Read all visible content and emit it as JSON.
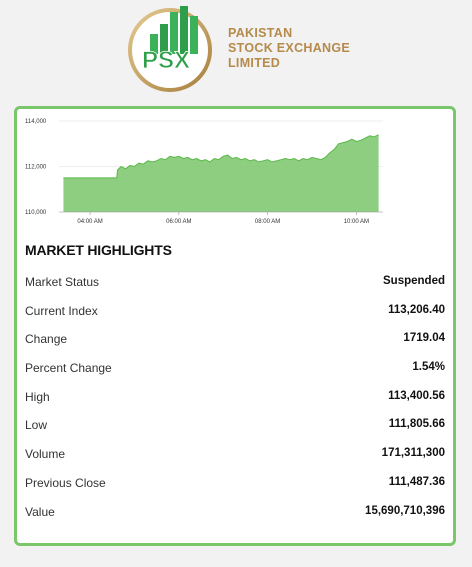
{
  "logo": {
    "mark_text": "PSX",
    "name_lines": [
      "PAKISTAN",
      "STOCK EXCHANGE",
      "LIMITED"
    ]
  },
  "colors": {
    "card_border": "#79c66b",
    "chart_fill": "#79c66b",
    "chart_line": "#5cb84a",
    "logo_gold": "#b58a4a",
    "logo_green": "#2e9e4a"
  },
  "chart_data": {
    "type": "area",
    "y_ticks": [
      "114,000",
      "112,000",
      "110,000"
    ],
    "y_tick_values": [
      114000,
      112000,
      110000
    ],
    "x_ticks": [
      "04:00 AM",
      "06:00 AM",
      "08:00 AM",
      "10:00 AM"
    ],
    "x_tick_values": [
      4,
      6,
      8,
      10
    ],
    "ylim": [
      110000,
      114000
    ],
    "xlim": [
      3.3,
      10.6
    ],
    "grid": true,
    "x": [
      3.4,
      4.6,
      4.62,
      4.7,
      4.8,
      4.9,
      5.0,
      5.1,
      5.2,
      5.3,
      5.4,
      5.5,
      5.6,
      5.7,
      5.8,
      5.9,
      6.0,
      6.1,
      6.2,
      6.3,
      6.4,
      6.5,
      6.6,
      6.7,
      6.8,
      6.9,
      7.0,
      7.1,
      7.2,
      7.3,
      7.4,
      7.5,
      7.6,
      7.7,
      7.8,
      7.9,
      8.0,
      8.1,
      8.2,
      8.3,
      8.4,
      8.5,
      8.6,
      8.7,
      8.8,
      8.9,
      9.0,
      9.1,
      9.2,
      9.3,
      9.4,
      9.5,
      9.6,
      9.7,
      9.8,
      9.9,
      10.0,
      10.1,
      10.2,
      10.3,
      10.4,
      10.5
    ],
    "y": [
      111500,
      111500,
      111850,
      112000,
      111900,
      112050,
      112000,
      112150,
      112100,
      112250,
      112200,
      112250,
      112350,
      112300,
      112450,
      112400,
      112450,
      112350,
      112400,
      112300,
      112350,
      112250,
      112300,
      112200,
      112350,
      112300,
      112450,
      112500,
      112350,
      112400,
      112300,
      112350,
      112250,
      112300,
      112200,
      112250,
      112300,
      112200,
      112250,
      112300,
      112350,
      112300,
      112350,
      112250,
      112350,
      112300,
      112400,
      112350,
      112300,
      112400,
      112600,
      112750,
      113000,
      113050,
      113100,
      113200,
      113100,
      113150,
      113250,
      113350,
      113300,
      113400
    ]
  },
  "highlights": {
    "title": "MARKET HIGHLIGHTS",
    "rows": [
      {
        "label": "Market Status",
        "value": "Suspended"
      },
      {
        "label": "Current Index",
        "value": "113,206.40"
      },
      {
        "label": "Change",
        "value": "1719.04"
      },
      {
        "label": "Percent Change",
        "value": "1.54%"
      },
      {
        "label": "High",
        "value": "113,400.56"
      },
      {
        "label": "Low",
        "value": "111,805.66"
      },
      {
        "label": "Volume",
        "value": "171,311,300"
      },
      {
        "label": "Previous Close",
        "value": "111,487.36"
      },
      {
        "label": "Value",
        "value": "15,690,710,396"
      }
    ]
  }
}
